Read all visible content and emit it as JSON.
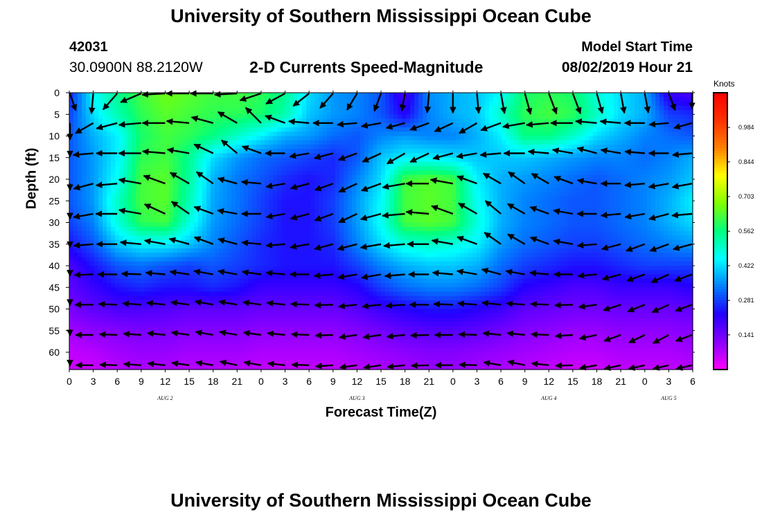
{
  "header": {
    "title": "University of Southern Mississippi Ocean Cube",
    "station_id": "42031",
    "station_coords": "30.0900N 88.2120W",
    "plot_title": "2-D Currents Speed-Magnitude",
    "model_start_label": "Model Start Time",
    "model_start_value": "08/02/2019 Hour 21"
  },
  "footer": {
    "title": "University of Southern Mississippi Ocean Cube"
  },
  "chart_data": {
    "type": "heatmap",
    "subtype": "time-depth current speed with direction vectors",
    "xlabel": "Forecast Time(Z)",
    "ylabel": "Depth (ft)",
    "x_tick_labels": [
      "0",
      "3",
      "6",
      "9",
      "12",
      "15",
      "18",
      "21",
      "0",
      "3",
      "6",
      "9",
      "12",
      "15",
      "18",
      "21",
      "0",
      "3",
      "6",
      "9",
      "12",
      "15",
      "18",
      "21",
      "0",
      "3",
      "6"
    ],
    "x_day_labels": [
      {
        "label": "AUG 2",
        "tick_index": 4
      },
      {
        "label": "AUG 3",
        "tick_index": 12
      },
      {
        "label": "AUG 4",
        "tick_index": 20
      },
      {
        "label": "AUG 5",
        "tick_index": 25
      }
    ],
    "y_ticks": [
      0,
      5,
      10,
      15,
      20,
      25,
      30,
      35,
      40,
      45,
      50,
      55,
      60
    ],
    "ylim": [
      0,
      64
    ],
    "x_hours_range": [
      0,
      78
    ],
    "colorbar": {
      "unit": "Knots",
      "range": [
        0.0,
        1.125
      ],
      "tick_values": [
        0.141,
        0.281,
        0.422,
        0.562,
        0.703,
        0.844,
        0.984
      ],
      "tick_labels": [
        "0.141",
        "0.281",
        "0.422",
        "0.562",
        "0.703",
        "0.844",
        "0.984"
      ],
      "colormap": [
        "#ff00ff",
        "#8a00ff",
        "#2200ff",
        "#0080ff",
        "#00ffff",
        "#00ff80",
        "#80ff00",
        "#ffff00",
        "#ff8000",
        "#ff3000",
        "#ff0000"
      ]
    },
    "speed_grid": {
      "x_hours": [
        0,
        3,
        6,
        9,
        12,
        15,
        18,
        21,
        24,
        27,
        30,
        33,
        36,
        39,
        42,
        45,
        48,
        51,
        54,
        57,
        60,
        63,
        66,
        69,
        72,
        75,
        78
      ],
      "depths_ft": [
        0,
        5,
        10,
        15,
        20,
        25,
        30,
        35,
        40,
        45,
        50,
        55,
        60,
        64
      ],
      "values_knots": [
        [
          0.25,
          0.45,
          0.55,
          0.62,
          0.66,
          0.64,
          0.62,
          0.62,
          0.6,
          0.55,
          0.42,
          0.36,
          0.34,
          0.3,
          0.18,
          0.35,
          0.38,
          0.4,
          0.45,
          0.58,
          0.6,
          0.58,
          0.48,
          0.42,
          0.38,
          0.2,
          0.18
        ],
        [
          0.28,
          0.42,
          0.52,
          0.6,
          0.64,
          0.62,
          0.6,
          0.6,
          0.58,
          0.52,
          0.4,
          0.36,
          0.34,
          0.3,
          0.22,
          0.34,
          0.38,
          0.4,
          0.5,
          0.6,
          0.62,
          0.6,
          0.5,
          0.42,
          0.38,
          0.28,
          0.26
        ],
        [
          0.3,
          0.38,
          0.44,
          0.58,
          0.62,
          0.6,
          0.56,
          0.5,
          0.44,
          0.38,
          0.36,
          0.32,
          0.3,
          0.34,
          0.36,
          0.34,
          0.34,
          0.38,
          0.44,
          0.56,
          0.56,
          0.5,
          0.42,
          0.38,
          0.34,
          0.32,
          0.3
        ],
        [
          0.3,
          0.36,
          0.44,
          0.6,
          0.62,
          0.55,
          0.42,
          0.36,
          0.32,
          0.3,
          0.28,
          0.26,
          0.3,
          0.4,
          0.44,
          0.44,
          0.42,
          0.4,
          0.4,
          0.4,
          0.38,
          0.36,
          0.34,
          0.34,
          0.32,
          0.34,
          0.38
        ],
        [
          0.3,
          0.36,
          0.46,
          0.62,
          0.64,
          0.54,
          0.38,
          0.33,
          0.3,
          0.26,
          0.24,
          0.26,
          0.34,
          0.42,
          0.62,
          0.64,
          0.62,
          0.44,
          0.38,
          0.36,
          0.34,
          0.32,
          0.3,
          0.32,
          0.34,
          0.36,
          0.4
        ],
        [
          0.3,
          0.36,
          0.5,
          0.62,
          0.64,
          0.52,
          0.37,
          0.33,
          0.28,
          0.24,
          0.24,
          0.28,
          0.36,
          0.45,
          0.62,
          0.64,
          0.62,
          0.46,
          0.38,
          0.34,
          0.32,
          0.3,
          0.3,
          0.32,
          0.34,
          0.38,
          0.44
        ],
        [
          0.28,
          0.34,
          0.48,
          0.6,
          0.62,
          0.48,
          0.36,
          0.32,
          0.28,
          0.24,
          0.24,
          0.28,
          0.36,
          0.46,
          0.62,
          0.64,
          0.62,
          0.48,
          0.38,
          0.34,
          0.32,
          0.3,
          0.3,
          0.32,
          0.34,
          0.38,
          0.42
        ],
        [
          0.24,
          0.3,
          0.4,
          0.44,
          0.44,
          0.4,
          0.34,
          0.3,
          0.26,
          0.24,
          0.24,
          0.26,
          0.34,
          0.42,
          0.48,
          0.5,
          0.48,
          0.44,
          0.36,
          0.32,
          0.3,
          0.28,
          0.28,
          0.3,
          0.32,
          0.34,
          0.36
        ],
        [
          0.18,
          0.24,
          0.3,
          0.32,
          0.3,
          0.28,
          0.3,
          0.28,
          0.26,
          0.24,
          0.24,
          0.24,
          0.28,
          0.34,
          0.38,
          0.4,
          0.4,
          0.38,
          0.32,
          0.28,
          0.26,
          0.24,
          0.24,
          0.26,
          0.28,
          0.28,
          0.28
        ],
        [
          0.16,
          0.2,
          0.24,
          0.26,
          0.24,
          0.24,
          0.26,
          0.24,
          0.2,
          0.2,
          0.2,
          0.2,
          0.22,
          0.28,
          0.32,
          0.34,
          0.34,
          0.32,
          0.28,
          0.22,
          0.2,
          0.18,
          0.18,
          0.2,
          0.2,
          0.2,
          0.22
        ],
        [
          0.13,
          0.16,
          0.18,
          0.18,
          0.17,
          0.16,
          0.16,
          0.16,
          0.15,
          0.15,
          0.15,
          0.15,
          0.17,
          0.2,
          0.22,
          0.24,
          0.24,
          0.22,
          0.2,
          0.16,
          0.15,
          0.14,
          0.14,
          0.15,
          0.15,
          0.15,
          0.16
        ],
        [
          0.09,
          0.11,
          0.12,
          0.13,
          0.13,
          0.12,
          0.12,
          0.12,
          0.11,
          0.11,
          0.11,
          0.11,
          0.12,
          0.14,
          0.16,
          0.17,
          0.17,
          0.16,
          0.14,
          0.12,
          0.11,
          0.1,
          0.1,
          0.11,
          0.11,
          0.11,
          0.12
        ],
        [
          0.06,
          0.07,
          0.09,
          0.1,
          0.1,
          0.09,
          0.09,
          0.09,
          0.08,
          0.08,
          0.08,
          0.08,
          0.09,
          0.1,
          0.11,
          0.12,
          0.12,
          0.11,
          0.1,
          0.09,
          0.08,
          0.07,
          0.07,
          0.08,
          0.08,
          0.08,
          0.09
        ],
        [
          0.05,
          0.05,
          0.07,
          0.08,
          0.08,
          0.07,
          0.07,
          0.07,
          0.06,
          0.06,
          0.06,
          0.06,
          0.07,
          0.08,
          0.09,
          0.1,
          0.1,
          0.09,
          0.08,
          0.07,
          0.06,
          0.05,
          0.05,
          0.06,
          0.06,
          0.06,
          0.07
        ]
      ]
    },
    "vectors": {
      "x_hours": [
        0,
        3,
        6,
        9,
        12,
        15,
        18,
        21,
        24,
        27,
        30,
        33,
        36,
        39,
        42,
        45,
        48,
        51,
        54,
        57,
        60,
        63,
        66,
        69,
        72,
        75,
        78
      ],
      "rows": [
        {
          "depth_ft": 0,
          "directions_deg": [
            160,
            185,
            220,
            245,
            265,
            270,
            270,
            265,
            250,
            240,
            230,
            220,
            210,
            200,
            190,
            185,
            180,
            175,
            170,
            165,
            160,
            160,
            165,
            170,
            170,
            160,
            150
          ]
        },
        {
          "depth_ft": 7,
          "directions_deg": [
            210,
            240,
            255,
            265,
            270,
            275,
            285,
            300,
            315,
            290,
            275,
            270,
            265,
            260,
            255,
            250,
            245,
            240,
            250,
            260,
            265,
            270,
            275,
            275,
            270,
            265,
            255
          ]
        },
        {
          "depth_ft": 14,
          "directions_deg": [
            260,
            265,
            270,
            270,
            275,
            280,
            295,
            310,
            290,
            270,
            260,
            255,
            250,
            245,
            240,
            245,
            255,
            260,
            265,
            270,
            275,
            280,
            285,
            280,
            275,
            270,
            265
          ]
        },
        {
          "depth_ft": 21,
          "directions_deg": [
            250,
            255,
            265,
            280,
            290,
            300,
            305,
            285,
            275,
            260,
            255,
            250,
            245,
            250,
            260,
            270,
            280,
            290,
            300,
            305,
            300,
            290,
            280,
            270,
            265,
            260,
            260
          ]
        },
        {
          "depth_ft": 28,
          "directions_deg": [
            255,
            260,
            270,
            280,
            295,
            305,
            290,
            280,
            270,
            260,
            255,
            250,
            245,
            255,
            265,
            275,
            290,
            300,
            310,
            300,
            290,
            280,
            270,
            265,
            260,
            255,
            265
          ]
        },
        {
          "depth_ft": 35,
          "directions_deg": [
            260,
            265,
            270,
            275,
            280,
            285,
            290,
            285,
            275,
            265,
            260,
            255,
            255,
            260,
            265,
            270,
            280,
            290,
            305,
            300,
            290,
            280,
            265,
            255,
            250,
            250,
            255
          ]
        },
        {
          "depth_ft": 42,
          "directions_deg": [
            265,
            268,
            270,
            272,
            275,
            278,
            280,
            280,
            278,
            275,
            270,
            265,
            260,
            260,
            265,
            270,
            275,
            280,
            285,
            280,
            275,
            270,
            265,
            255,
            250,
            245,
            250
          ]
        },
        {
          "depth_ft": 49,
          "directions_deg": [
            268,
            270,
            272,
            274,
            276,
            278,
            280,
            280,
            278,
            276,
            272,
            268,
            264,
            264,
            266,
            270,
            272,
            274,
            276,
            274,
            272,
            268,
            262,
            252,
            248,
            245,
            250
          ]
        },
        {
          "depth_ft": 56,
          "directions_deg": [
            268,
            270,
            272,
            274,
            276,
            278,
            280,
            280,
            278,
            276,
            272,
            268,
            262,
            262,
            264,
            268,
            270,
            272,
            276,
            276,
            272,
            266,
            258,
            250,
            244,
            242,
            250
          ]
        },
        {
          "depth_ft": 63,
          "directions_deg": [
            268,
            270,
            272,
            274,
            276,
            278,
            280,
            282,
            280,
            276,
            272,
            266,
            262,
            262,
            264,
            268,
            270,
            272,
            280,
            282,
            276,
            268,
            260,
            252,
            248,
            244,
            250
          ]
        }
      ]
    }
  }
}
